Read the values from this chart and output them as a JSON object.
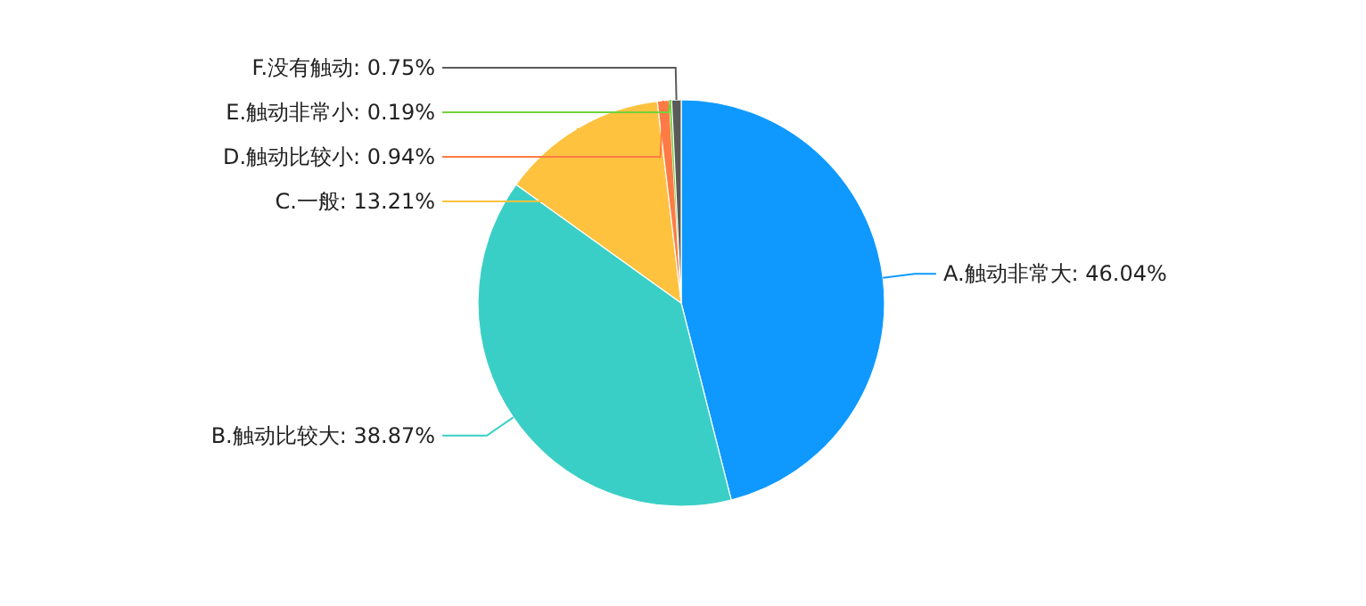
{
  "chart_data": {
    "type": "pie",
    "categories": [
      "A.触动非常大",
      "B.触动比较大",
      "C.一般",
      "D.触动比较小",
      "E.触动非常小",
      "F.没有触动"
    ],
    "values": [
      46.04,
      38.87,
      13.21,
      0.94,
      0.19,
      0.75
    ],
    "colors": [
      "#0f99ff",
      "#3acfc6",
      "#ffc23f",
      "#ff7a45",
      "#73d13d",
      "#5a5a5a"
    ],
    "value_labels": [
      "46.04%",
      "38.87%",
      "13.21%",
      "0.94%",
      "0.19%",
      "0.75%"
    ]
  }
}
